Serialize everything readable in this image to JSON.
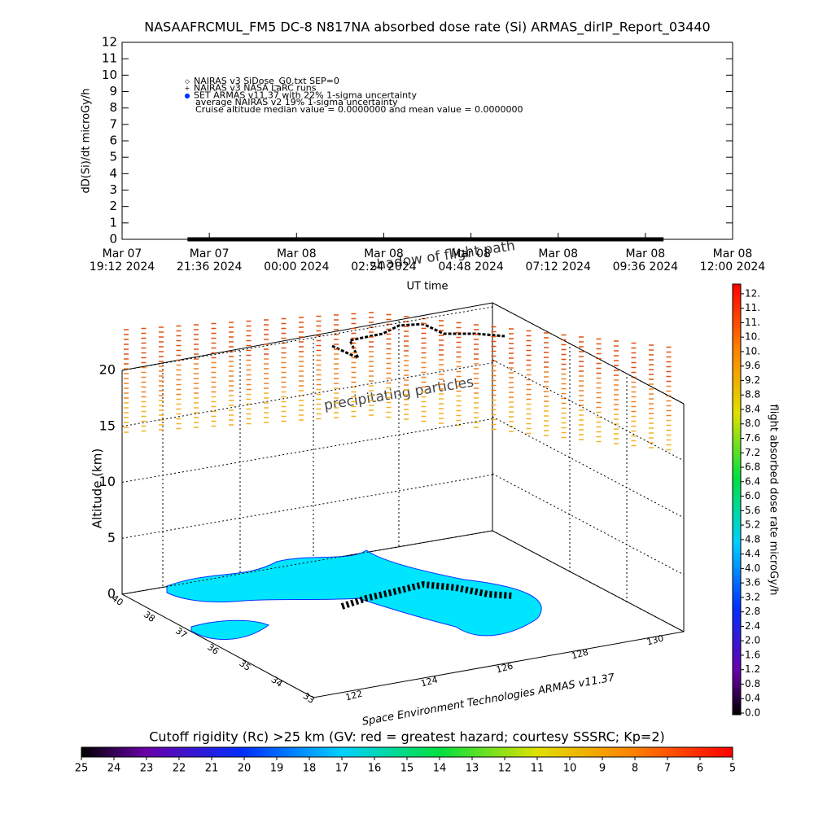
{
  "chart_data": [
    {
      "type": "line",
      "title": "NASAAFRCMUL_FM5 DC-8   N817NA absorbed dose rate (Si) ARMAS_dirIP_Report_03440",
      "ylabel": "dD(Si)/dt microGy/h",
      "xlabel": "UT time",
      "ylim": [
        0,
        12
      ],
      "yticks": [
        0,
        1,
        2,
        3,
        4,
        5,
        6,
        7,
        8,
        9,
        10,
        11,
        12
      ],
      "xlim": [
        0,
        16.8
      ],
      "xticks": [
        {
          "value": 0,
          "label": [
            "Mar 07",
            "19:12 2024"
          ]
        },
        {
          "value": 2.4,
          "label": [
            "Mar 07",
            "21:36 2024"
          ]
        },
        {
          "value": 4.8,
          "label": [
            "Mar 08",
            "00:00 2024"
          ]
        },
        {
          "value": 7.2,
          "label": [
            "Mar 08",
            "02:24 2024"
          ]
        },
        {
          "value": 9.6,
          "label": [
            "Mar 08",
            "04:48 2024"
          ]
        },
        {
          "value": 12,
          "label": [
            "Mar 08",
            "07:12 2024"
          ]
        },
        {
          "value": 14.4,
          "label": [
            "Mar 08",
            "09:36 2024"
          ]
        },
        {
          "value": 16.8,
          "label": [
            "Mar 08",
            "12:00 2024"
          ]
        }
      ],
      "legend": [
        "NAIRAS v3 SiDose_G0.txt SEP=0",
        "NAIRAS v3 NASA LaRC runs",
        "SET ARMAS v11.37 with 22% 1-sigma uncertainty",
        "average NAIRAS v2 19% 1-sigma uncertainty",
        "Cruise altitude median value = 0.0000000 and mean value = 0.0000000"
      ],
      "series": [
        {
          "name": "SET ARMAS v11.37",
          "color": "#000000",
          "x": [
            1.8,
            3,
            4.2,
            5.4,
            6.6,
            7.8,
            9,
            10.2,
            11.4,
            12.6,
            13.8,
            14.9
          ],
          "values": [
            0,
            0,
            0,
            0,
            0,
            0,
            0,
            0,
            0,
            0,
            0,
            0
          ]
        }
      ]
    },
    {
      "type": "3d",
      "ylabel": "Altitude (km)",
      "zticks": [
        0,
        5,
        10,
        15,
        20
      ],
      "lat_ticks": [
        40,
        38,
        37,
        36,
        35,
        34,
        33
      ],
      "lon_ticks": [
        122,
        124,
        126,
        128,
        130
      ],
      "annotations": [
        "shadow of flight path",
        "precipitating particles",
        "Space Environment Technologies ARMAS v11.37"
      ]
    },
    {
      "type": "colorbar",
      "title": "flight absorbed dose rate microGy/h",
      "ticks": [
        {
          "value": 0,
          "label": "0.0"
        },
        0.4,
        0.8,
        1.2,
        1.6,
        {
          "value": 2,
          "label": "2.0"
        },
        2.4,
        2.8,
        3.2,
        3.6,
        {
          "value": 4,
          "label": "4.0"
        },
        4.4,
        4.8,
        5.2,
        5.6,
        {
          "value": 6,
          "label": "6.0"
        },
        6.4,
        6.8,
        7.2,
        7.6,
        {
          "value": 8,
          "label": "8.0"
        },
        8.4,
        8.8,
        9.2,
        9.6,
        {
          "value": 10,
          "label": "10."
        },
        {
          "value": 10.4,
          "label": "10."
        },
        {
          "value": 10.8,
          "label": "11."
        },
        {
          "value": 11.2,
          "label": "11."
        },
        {
          "value": 11.6,
          "label": "12."
        }
      ],
      "lim": [
        0,
        11.8
      ]
    },
    {
      "type": "colorbar",
      "title": "Cutoff rigidity (Rc) >25 km (GV: red = greatest hazard; courtesy SSSRC; Kp=2)",
      "lim": [
        25,
        5
      ],
      "ticks": [
        25,
        24,
        23,
        22,
        21,
        20,
        19,
        18,
        17,
        16,
        15,
        14,
        13,
        12,
        11,
        10,
        9,
        8,
        7,
        6,
        5
      ]
    }
  ]
}
